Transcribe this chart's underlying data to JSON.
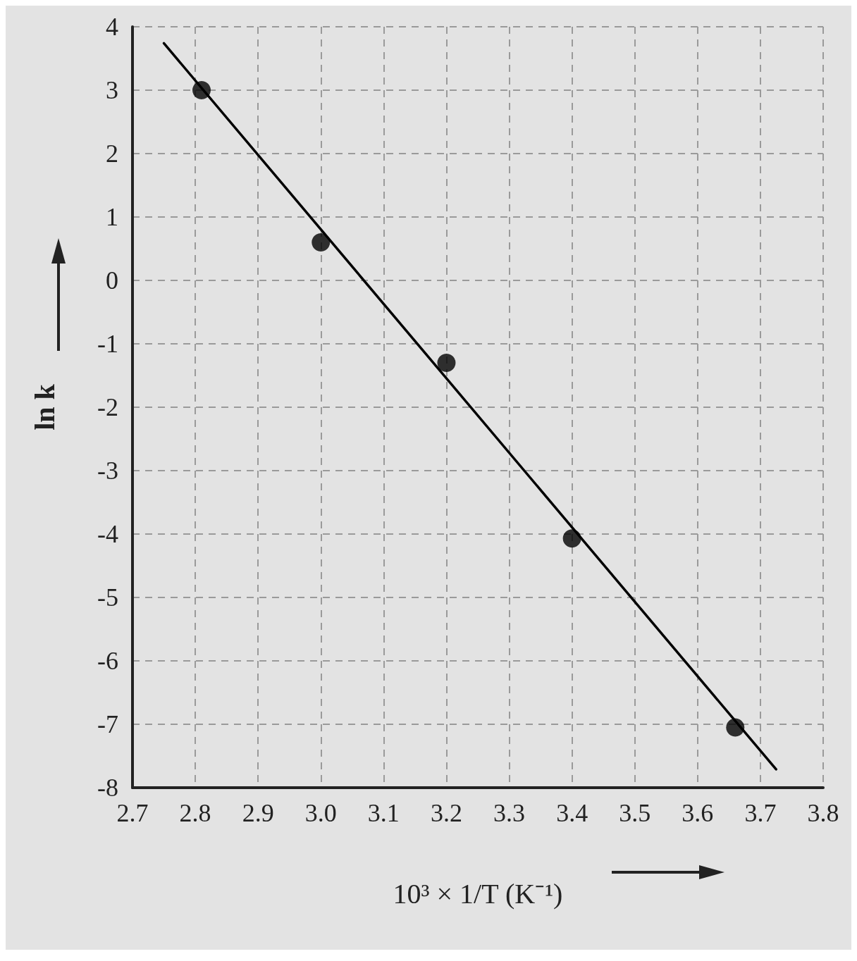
{
  "chart_data": {
    "type": "scatter",
    "xlabel": "10³ × 1/T (K⁻¹)",
    "ylabel": "ln k",
    "xlim": [
      2.7,
      3.8
    ],
    "xticks": [
      2.7,
      2.8,
      2.9,
      {
        "value": 3,
        "label": "3.0"
      },
      3.1,
      3.2,
      3.3,
      3.4,
      3.5,
      3.6,
      3.7,
      3.8
    ],
    "ylim": [
      -8,
      4
    ],
    "yticks": [
      -8,
      -7,
      -6,
      -5,
      -4,
      -3,
      -2,
      -1,
      0,
      1,
      2,
      3,
      4
    ],
    "grid": true,
    "marker": "circle",
    "series": [
      {
        "color": "#000000",
        "x": [
          2.81,
          3.0,
          3.2,
          3.4,
          3.66
        ],
        "values": [
          3.0,
          0.6,
          -1.3,
          -4.07,
          -7.05
        ]
      },
      {
        "type": "line",
        "color": "#000000",
        "line_style": "solid",
        "marker": "none",
        "x": [
          2.75,
          3.725
        ],
        "values": [
          3.74,
          -7.71
        ]
      }
    ]
  }
}
